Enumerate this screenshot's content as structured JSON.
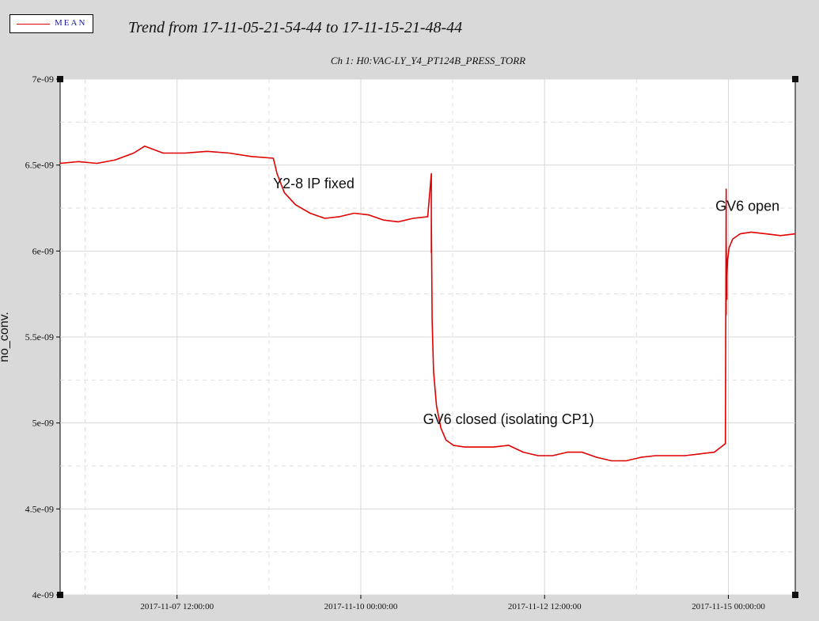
{
  "legend": {
    "label": "MEAN",
    "color": "#e00000"
  },
  "chart_data": {
    "type": "line",
    "title": "Trend from 17-11-05-21-54-44 to 17-11-15-21-48-44",
    "subtitle": "Ch 1: H0:VAC-LY_Y4_PT124B_PRESS_TORR",
    "ylabel": "no_conv.",
    "xlabel": "",
    "ylim": [
      4e-09,
      7e-09
    ],
    "y_ticks": [
      "4e-09",
      "4.5e-09",
      "5e-09",
      "5.5e-09",
      "6e-09",
      "6.5e-09",
      "7e-09"
    ],
    "y_tick_values": [
      4e-09,
      4.5e-09,
      5e-09,
      5.5e-09,
      6e-09,
      6.5e-09,
      7e-09
    ],
    "x_ticks": [
      "2017-11-07 12:00:00",
      "2017-11-10 00:00:00",
      "2017-11-12 12:00:00",
      "2017-11-15 00:00:00"
    ],
    "x_tick_values": [
      1.59,
      4.09,
      6.59,
      9.09
    ],
    "xlim": [
      0,
      10
    ],
    "grid": true,
    "legend_position": "top-left",
    "series": [
      {
        "name": "MEAN",
        "color": "#e00000",
        "x": [
          0.0,
          0.25,
          0.5,
          0.75,
          1.0,
          1.15,
          1.4,
          1.7,
          2.0,
          2.3,
          2.6,
          2.9,
          2.9,
          2.95,
          3.05,
          3.2,
          3.4,
          3.6,
          3.8,
          4.0,
          4.2,
          4.4,
          4.6,
          4.8,
          5.0,
          5.05,
          5.05,
          5.05,
          5.06,
          5.08,
          5.12,
          5.18,
          5.25,
          5.35,
          5.5,
          5.7,
          5.9,
          6.1,
          6.3,
          6.5,
          6.7,
          6.9,
          7.1,
          7.3,
          7.5,
          7.7,
          7.9,
          8.1,
          8.3,
          8.5,
          8.7,
          8.9,
          9.05,
          9.06,
          9.06,
          9.06,
          9.07,
          9.07,
          9.08,
          9.1,
          9.15,
          9.25,
          9.4,
          9.6,
          9.8,
          10.0
        ],
        "y": [
          6.51e-09,
          6.52e-09,
          6.51e-09,
          6.53e-09,
          6.57e-09,
          6.61e-09,
          6.57e-09,
          6.57e-09,
          6.58e-09,
          6.57e-09,
          6.55e-09,
          6.54e-09,
          6.54e-09,
          6.45e-09,
          6.34e-09,
          6.27e-09,
          6.22e-09,
          6.19e-09,
          6.2e-09,
          6.22e-09,
          6.21e-09,
          6.18e-09,
          6.17e-09,
          6.19e-09,
          6.2e-09,
          6.45e-09,
          5.99e-09,
          6.2e-09,
          5.6e-09,
          5.3e-09,
          5.1e-09,
          4.97e-09,
          4.9e-09,
          4.87e-09,
          4.86e-09,
          4.86e-09,
          4.86e-09,
          4.87e-09,
          4.83e-09,
          4.81e-09,
          4.81e-09,
          4.83e-09,
          4.83e-09,
          4.8e-09,
          4.78e-09,
          4.78e-09,
          4.8e-09,
          4.81e-09,
          4.81e-09,
          4.81e-09,
          4.82e-09,
          4.83e-09,
          4.88e-09,
          6.36e-09,
          5.63e-09,
          6.07e-09,
          5.72e-09,
          5.85e-09,
          5.95e-09,
          6.02e-09,
          6.07e-09,
          6.1e-09,
          6.11e-09,
          6.1e-09,
          6.09e-09,
          6.1e-09
        ]
      }
    ],
    "annotations": [
      {
        "text": "Y2-8 IP fixed",
        "x": 3.45,
        "y": 6.365e-09
      },
      {
        "text": "GV6 closed (isolating CP1)",
        "x": 6.1,
        "y": 4.995e-09
      },
      {
        "text": "GV6 open",
        "x": 9.35,
        "y": 6.235e-09
      }
    ]
  }
}
